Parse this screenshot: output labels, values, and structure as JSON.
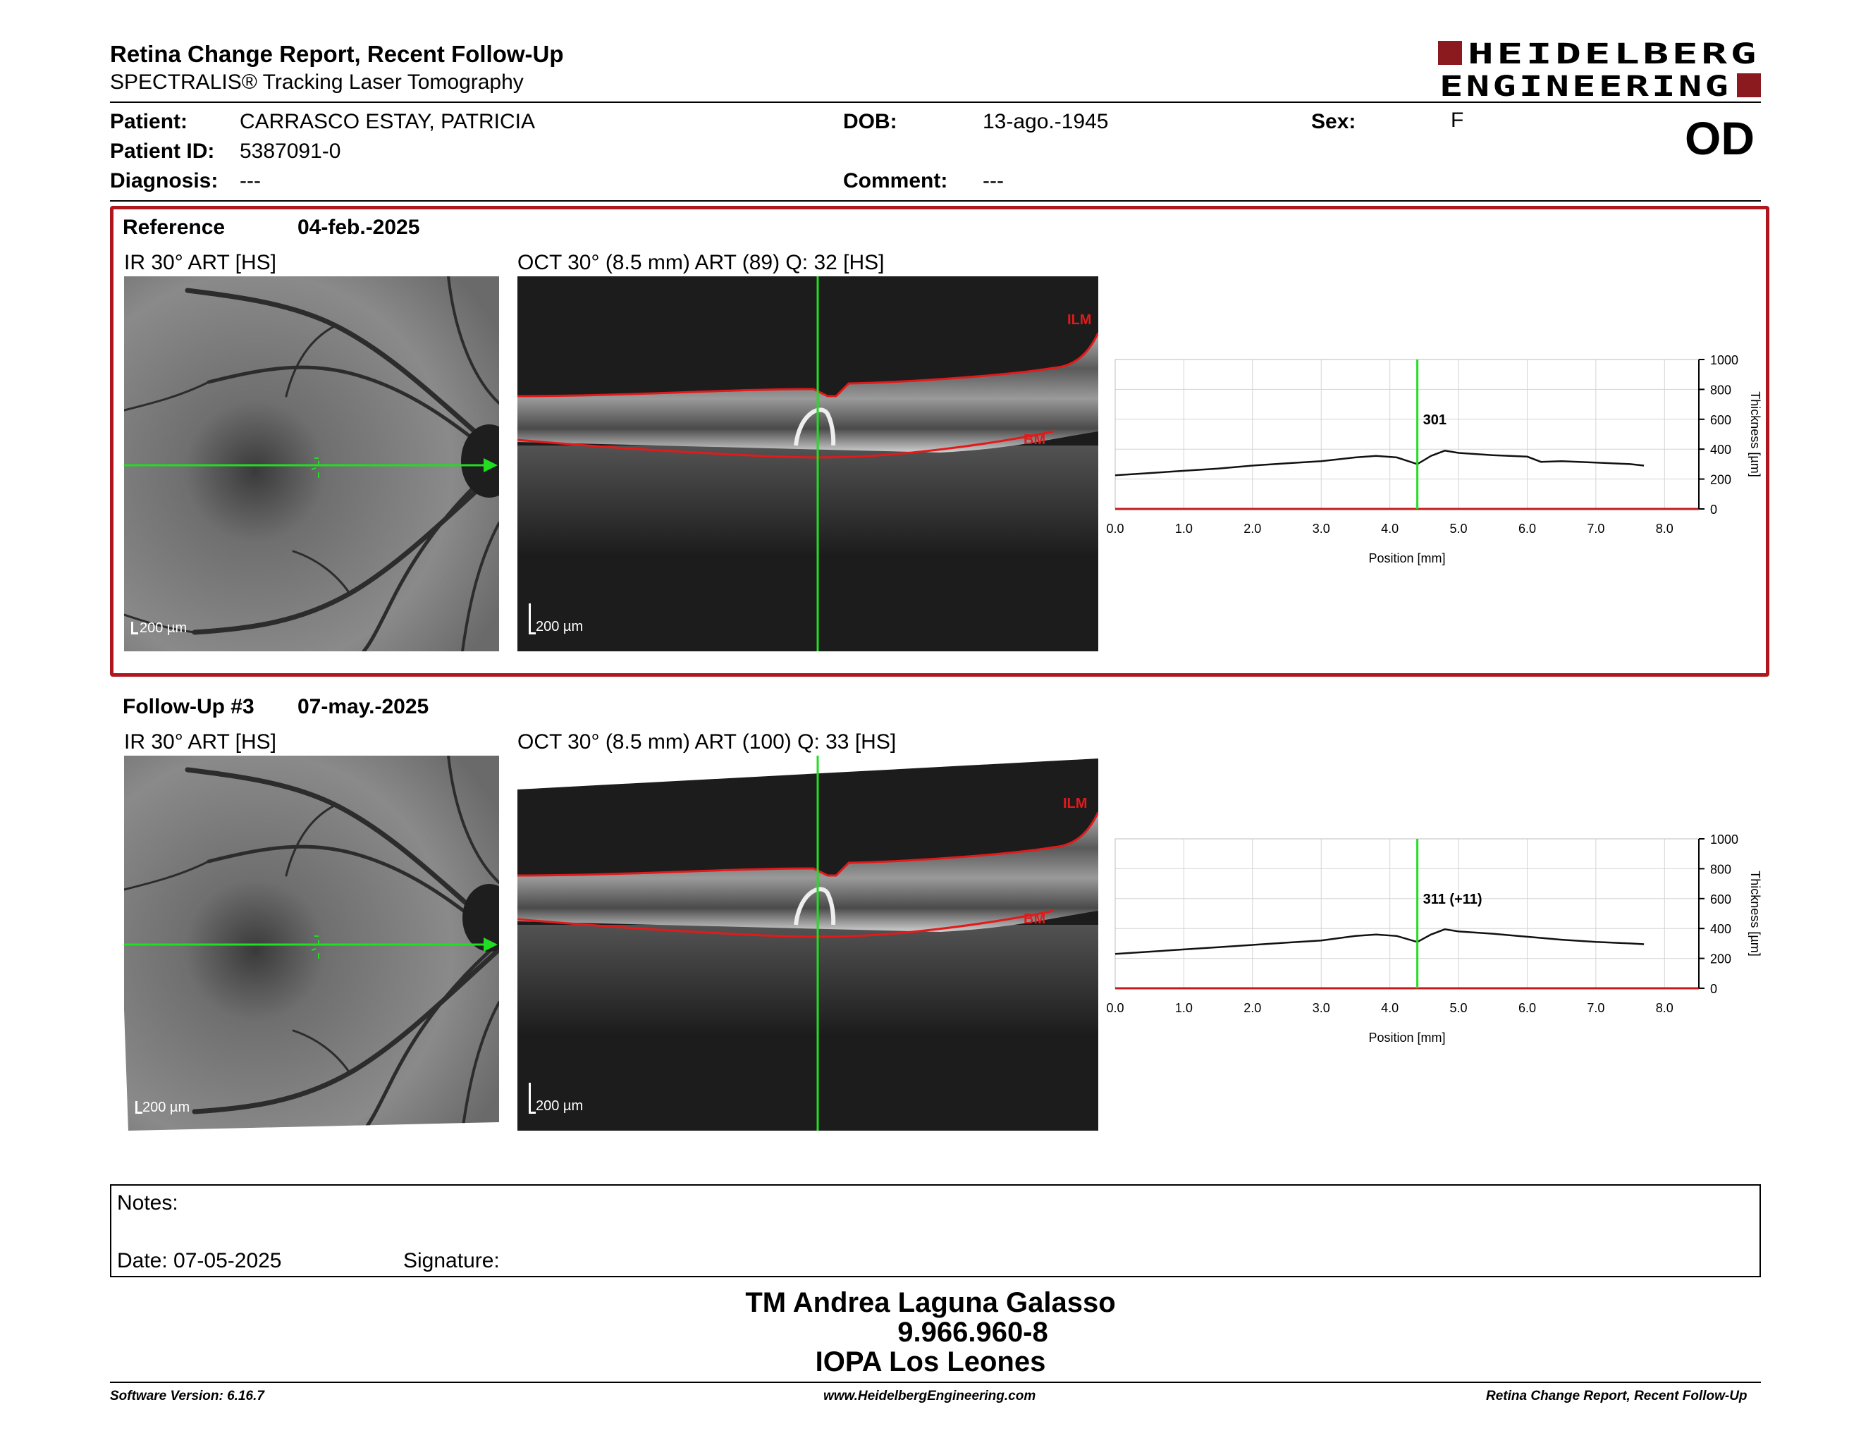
{
  "header": {
    "title": "Retina Change Report, Recent Follow-Up",
    "subtitle": "SPECTRALIS® Tracking Laser Tomography",
    "logo_line1": "HEIDELBERG",
    "logo_line2": "ENGINEERING",
    "logo_color": "#8b1a1f"
  },
  "patient": {
    "patient_label": "Patient:",
    "patient_value": "CARRASCO ESTAY, PATRICIA",
    "id_label": "Patient ID:",
    "id_value": "5387091-0",
    "diagnosis_label": "Diagnosis:",
    "diagnosis_value": "---",
    "dob_label": "DOB:",
    "dob_value": "13-ago.-1945",
    "comment_label": "Comment:",
    "comment_value": "---",
    "sex_label": "Sex:",
    "sex_value": "F",
    "eye": "OD"
  },
  "reference": {
    "label": "Reference",
    "date": "04-feb.-2025",
    "ir_title": "IR 30° ART [HS]",
    "oct_title": "OCT 30° (8.5 mm) ART (89) Q: 32 [HS]",
    "scale": "200 µm",
    "ilm": "ILM",
    "bm": "BM",
    "highlight_color": "#b0161e"
  },
  "followup": {
    "label": "Follow-Up #3",
    "date": "07-may.-2025",
    "ir_title": "IR 30° ART [HS]",
    "oct_title": "OCT 30° (8.5 mm) ART (100) Q: 33 [HS]",
    "scale": "200 µm",
    "ilm": "ILM",
    "bm": "BM"
  },
  "chart_data": [
    {
      "type": "line",
      "xlabel": "Position [mm]",
      "ylabel": "Thickness [µm]",
      "xlim": [
        0,
        8.5
      ],
      "ylim": [
        0,
        1000
      ],
      "x_ticks": [
        "0.0",
        "1.0",
        "2.0",
        "3.0",
        "4.0",
        "5.0",
        "6.0",
        "7.0",
        "8.0"
      ],
      "y_ticks": [
        "0",
        "200",
        "400",
        "600",
        "800",
        "1000"
      ],
      "marker_x": 4.4,
      "marker_label": "301",
      "grid": true,
      "series": [
        {
          "x": [
            0.0,
            0.5,
            1.0,
            1.5,
            2.0,
            2.5,
            3.0,
            3.5,
            3.8,
            4.1,
            4.4,
            4.6,
            4.8,
            5.0,
            5.5,
            6.0,
            6.2,
            6.5,
            7.0,
            7.5,
            7.7
          ],
          "y": [
            225,
            240,
            255,
            270,
            290,
            305,
            320,
            345,
            355,
            345,
            300,
            355,
            390,
            375,
            360,
            350,
            315,
            320,
            310,
            300,
            290
          ]
        }
      ]
    },
    {
      "type": "line",
      "xlabel": "Position [mm]",
      "ylabel": "Thickness [µm]",
      "xlim": [
        0,
        8.5
      ],
      "ylim": [
        0,
        1000
      ],
      "x_ticks": [
        "0.0",
        "1.0",
        "2.0",
        "3.0",
        "4.0",
        "5.0",
        "6.0",
        "7.0",
        "8.0"
      ],
      "y_ticks": [
        "0",
        "200",
        "400",
        "600",
        "800",
        "1000"
      ],
      "marker_x": 4.4,
      "marker_label": "311 (+11)",
      "grid": true,
      "series": [
        {
          "x": [
            0.0,
            0.5,
            1.0,
            1.5,
            2.0,
            2.5,
            3.0,
            3.5,
            3.8,
            4.1,
            4.4,
            4.6,
            4.8,
            5.0,
            5.5,
            6.0,
            6.5,
            7.0,
            7.5,
            7.7
          ],
          "y": [
            230,
            245,
            260,
            275,
            290,
            305,
            320,
            350,
            360,
            350,
            310,
            360,
            395,
            380,
            365,
            345,
            325,
            310,
            300,
            295
          ]
        }
      ]
    }
  ],
  "notes": {
    "notes_label": "Notes:",
    "date_label": "Date: 07-05-2025",
    "signature_label": "Signature:"
  },
  "signature": {
    "name": "TM Andrea Laguna Galasso",
    "id": "9.966.960-8",
    "org": "IOPA Los Leones"
  },
  "footer": {
    "software": "Software Version: 6.16.7",
    "website": "www.HeidelbergEngineering.com",
    "report": "Retina Change Report, Recent Follow-Up"
  }
}
